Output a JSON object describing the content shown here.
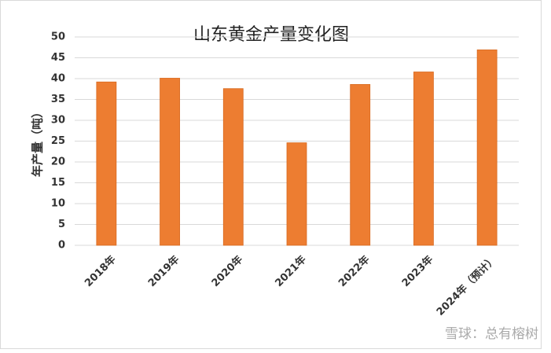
{
  "chart_data": {
    "type": "bar",
    "title": "山东黄金产量变化图",
    "y_label": "年产量（吨）",
    "categories": [
      "2018年",
      "2019年",
      "2020年",
      "2021年",
      "2022年",
      "2023年",
      "2024年（预计）"
    ],
    "values": [
      39.2,
      40.1,
      37.6,
      24.6,
      38.6,
      41.6,
      46.9
    ],
    "color": "#ed7d31",
    "ylim": [
      0,
      50
    ],
    "yticks": [
      0,
      5,
      10,
      15,
      20,
      25,
      30,
      35,
      40,
      45,
      50
    ],
    "grid": true,
    "watermark": "雪球：总有榕树"
  }
}
